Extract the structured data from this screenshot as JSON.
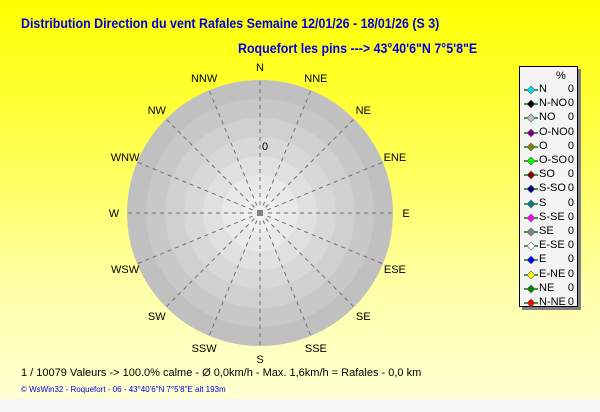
{
  "header": {
    "title": "Distribution Direction du vent Rafales  Semaine 12/01/26 - 18/01/26 (S 3)",
    "subtitle": "Roquefort les pins    --->  43°40'6\"N 7°5'8\"E"
  },
  "chart_data": {
    "type": "polar-rose",
    "directions": [
      "N",
      "NNE",
      "NE",
      "ENE",
      "E",
      "ESE",
      "SE",
      "SSE",
      "S",
      "SSW",
      "SW",
      "WSW",
      "W",
      "WNW",
      "NW",
      "NNW"
    ],
    "radial_tick_label": "0",
    "legend_header": "%",
    "legend": [
      {
        "name": "N",
        "value": "0",
        "color": "#00e0e0"
      },
      {
        "name": "N-NO",
        "value": "0",
        "color": "#000000"
      },
      {
        "name": "NO",
        "value": "0",
        "color": "#c0c0c0"
      },
      {
        "name": "O-NO",
        "value": "0",
        "color": "#800080"
      },
      {
        "name": "O",
        "value": "0",
        "color": "#808000"
      },
      {
        "name": "O-SO",
        "value": "0",
        "color": "#00ff00"
      },
      {
        "name": "SO",
        "value": "0",
        "color": "#800000"
      },
      {
        "name": "S-SO",
        "value": "0",
        "color": "#000080"
      },
      {
        "name": "S",
        "value": "0",
        "color": "#008080"
      },
      {
        "name": "S-SE",
        "value": "0",
        "color": "#ff00ff"
      },
      {
        "name": "SE",
        "value": "0",
        "color": "#808080"
      },
      {
        "name": "E-SE",
        "value": "0",
        "color": "#ffffff"
      },
      {
        "name": "E",
        "value": "0",
        "color": "#0000ff"
      },
      {
        "name": "E-NE",
        "value": "0",
        "color": "#ffff00"
      },
      {
        "name": "NE",
        "value": "0",
        "color": "#008000"
      },
      {
        "name": "N-NE",
        "value": "0",
        "color": "#ff0000"
      }
    ]
  },
  "stats": "1 / 10079 Valeurs  -> 100.0% calme   -   Ø 0,0km/h  -  Max. 1,6km/h = Rafales   -   0,0 km",
  "footer": "© WsWin32   -   Roquefort - 06   -   43°40'6\"N 7°5'8\"E alt 193m"
}
